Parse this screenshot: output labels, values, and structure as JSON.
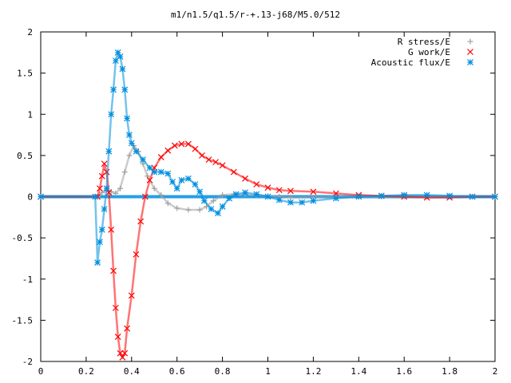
{
  "chart_data": {
    "type": "scatter",
    "title": "m1/n1.5/q1.5/r-+.13-j68/M5.0/512",
    "xlabel": "",
    "ylabel": "",
    "xlim": [
      0,
      2
    ],
    "ylim": [
      -2,
      2
    ],
    "x_ticks": [
      "0",
      "0.2",
      "0.4",
      "0.6",
      "0.8",
      "1",
      "1.2",
      "1.4",
      "1.6",
      "1.8",
      "2"
    ],
    "y_ticks": [
      "2",
      "1.5",
      "1",
      "0.5",
      "0",
      "-0.5",
      "-1",
      "-1.5",
      "-2"
    ],
    "x_tick_values": [
      0,
      0.2,
      0.4,
      0.6,
      0.8,
      1.0,
      1.2,
      1.4,
      1.6,
      1.8,
      2.0
    ],
    "y_tick_values": [
      2,
      1.5,
      1,
      0.5,
      0,
      -0.5,
      -1,
      -1.5,
      -2
    ],
    "grid": false,
    "legend_position": "top-right",
    "series": [
      {
        "name": "R stress/E",
        "marker": "plus",
        "color": "#a0a0a0",
        "x": [
          0.0,
          0.25,
          0.27,
          0.29,
          0.31,
          0.33,
          0.35,
          0.37,
          0.39,
          0.41,
          0.43,
          0.45,
          0.47,
          0.5,
          0.53,
          0.56,
          0.6,
          0.65,
          0.7,
          0.73,
          0.76,
          0.8,
          0.85,
          0.9,
          0.95,
          1.0,
          1.05,
          1.1,
          1.2,
          1.3,
          1.4,
          1.5,
          1.6,
          1.7,
          1.8,
          1.9,
          2.0
        ],
        "y": [
          0.0,
          0.0,
          0.05,
          0.08,
          0.06,
          0.04,
          0.1,
          0.3,
          0.5,
          0.62,
          0.55,
          0.4,
          0.25,
          0.1,
          0.02,
          -0.08,
          -0.14,
          -0.16,
          -0.16,
          -0.12,
          -0.05,
          0.02,
          0.03,
          0.03,
          0.02,
          0.01,
          0.0,
          -0.01,
          -0.01,
          0.0,
          0.0,
          0.0,
          0.0,
          0.0,
          0.0,
          0.0,
          0.0
        ]
      },
      {
        "name": "G work/E",
        "marker": "cross",
        "color": "#ff0000",
        "x": [
          0.0,
          0.25,
          0.26,
          0.27,
          0.28,
          0.29,
          0.3,
          0.31,
          0.32,
          0.33,
          0.34,
          0.35,
          0.36,
          0.37,
          0.38,
          0.4,
          0.42,
          0.44,
          0.46,
          0.48,
          0.5,
          0.53,
          0.56,
          0.59,
          0.62,
          0.65,
          0.68,
          0.71,
          0.74,
          0.77,
          0.8,
          0.85,
          0.9,
          0.95,
          1.0,
          1.05,
          1.1,
          1.2,
          1.3,
          1.4,
          1.5,
          1.6,
          1.7,
          1.8,
          1.9,
          2.0
        ],
        "y": [
          0.0,
          0.0,
          0.1,
          0.25,
          0.4,
          0.3,
          0.05,
          -0.4,
          -0.9,
          -1.35,
          -1.7,
          -1.9,
          -1.95,
          -1.9,
          -1.6,
          -1.2,
          -0.7,
          -0.3,
          0.0,
          0.2,
          0.35,
          0.48,
          0.56,
          0.62,
          0.64,
          0.64,
          0.58,
          0.5,
          0.45,
          0.42,
          0.38,
          0.3,
          0.22,
          0.15,
          0.11,
          0.08,
          0.07,
          0.06,
          0.04,
          0.02,
          0.01,
          0.0,
          -0.01,
          -0.01,
          0.0,
          0.0
        ]
      },
      {
        "name": "Acoustic flux/E",
        "marker": "star",
        "color": "#008fe0",
        "x": [
          0.0,
          0.24,
          0.25,
          0.26,
          0.27,
          0.28,
          0.29,
          0.3,
          0.31,
          0.32,
          0.33,
          0.34,
          0.35,
          0.36,
          0.37,
          0.38,
          0.39,
          0.4,
          0.42,
          0.45,
          0.48,
          0.5,
          0.53,
          0.56,
          0.58,
          0.6,
          0.62,
          0.65,
          0.68,
          0.7,
          0.72,
          0.75,
          0.78,
          0.8,
          0.83,
          0.86,
          0.9,
          0.95,
          1.0,
          1.05,
          1.1,
          1.15,
          1.2,
          1.3,
          1.4,
          1.5,
          1.6,
          1.7,
          1.8,
          1.9,
          2.0
        ],
        "y": [
          0.0,
          0.0,
          -0.8,
          -0.55,
          -0.4,
          -0.15,
          0.1,
          0.55,
          1.0,
          1.3,
          1.65,
          1.75,
          1.7,
          1.55,
          1.3,
          0.95,
          0.75,
          0.65,
          0.55,
          0.45,
          0.35,
          0.3,
          0.3,
          0.28,
          0.18,
          0.1,
          0.2,
          0.22,
          0.15,
          0.06,
          -0.05,
          -0.15,
          -0.2,
          -0.12,
          -0.02,
          0.03,
          0.05,
          0.03,
          0.0,
          -0.04,
          -0.07,
          -0.07,
          -0.05,
          -0.02,
          0.0,
          0.01,
          0.02,
          0.02,
          0.01,
          0.0,
          0.0
        ]
      }
    ]
  }
}
